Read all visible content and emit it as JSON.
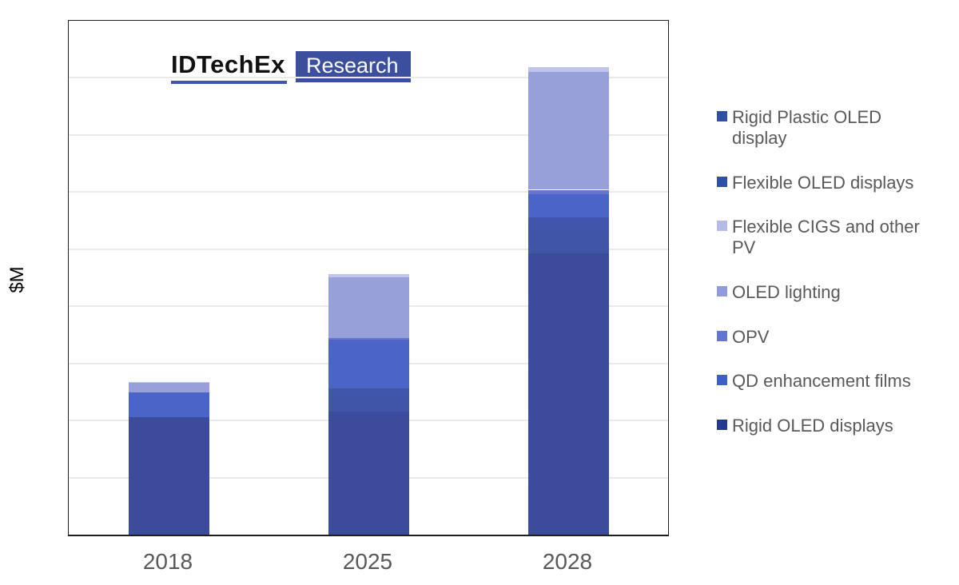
{
  "header": {
    "logo_text": "IDTechEx",
    "logo_badge": "Research",
    "logo_underline_color": "#3e56b0",
    "badge_bg_color": "#3b4f9e"
  },
  "chart_data": {
    "type": "bar",
    "subtype": "stacked-column",
    "title": "",
    "xlabel": "",
    "ylabel": "$M",
    "categories": [
      "2018",
      "2025",
      "2028"
    ],
    "ylim": [
      0,
      9000
    ],
    "gridline_step": 1000,
    "grid": "on",
    "tick_labels_y": "none",
    "series": [
      {
        "name": "Rigid OLED displays",
        "stack_order": 1,
        "color": "#3c4c9a",
        "swatch_color": "#243a8c",
        "values": [
          2060,
          2160,
          4930
        ]
      },
      {
        "name": "Flexible OLED displays",
        "stack_order": 2,
        "color": "#4054a8",
        "swatch_color": "#2f4ea5",
        "values": [
          0,
          280,
          430
        ]
      },
      {
        "name": "Rigid Plastic OLED display",
        "stack_order": 3,
        "color": "#4255ac",
        "swatch_color": "#2f4ea5",
        "values": [
          0,
          120,
          200
        ]
      },
      {
        "name": "QD enhancement films",
        "stack_order": 4,
        "color": "#4a64c8",
        "swatch_color": "#3e5ec8",
        "values": [
          430,
          850,
          400
        ]
      },
      {
        "name": "OPV",
        "stack_order": 5,
        "color": "#6576cd",
        "swatch_color": "#6377ce",
        "values": [
          0,
          30,
          80
        ]
      },
      {
        "name": "OLED lighting",
        "stack_order": 6,
        "color": "#97a0d8",
        "swatch_color": "#8f9bdb",
        "values": [
          170,
          1070,
          2070
        ]
      },
      {
        "name": "Flexible CIGS and other PV",
        "stack_order": 7,
        "color": "#bfc5ea",
        "swatch_color": "#b3bbe6",
        "values": [
          20,
          60,
          80
        ]
      }
    ],
    "totals": [
      2680,
      4570,
      8190
    ],
    "legend_position": "right",
    "legend_order": [
      "Rigid Plastic OLED display",
      "Flexible OLED displays",
      "Flexible CIGS and other PV",
      "OLED lighting",
      "OPV",
      "QD enhancement films",
      "Rigid OLED displays"
    ]
  },
  "colors": {
    "plot_border": "#1f1f1f",
    "gridline": "#eaeaea",
    "axis_text": "#595959",
    "legend_text": "#595959"
  }
}
